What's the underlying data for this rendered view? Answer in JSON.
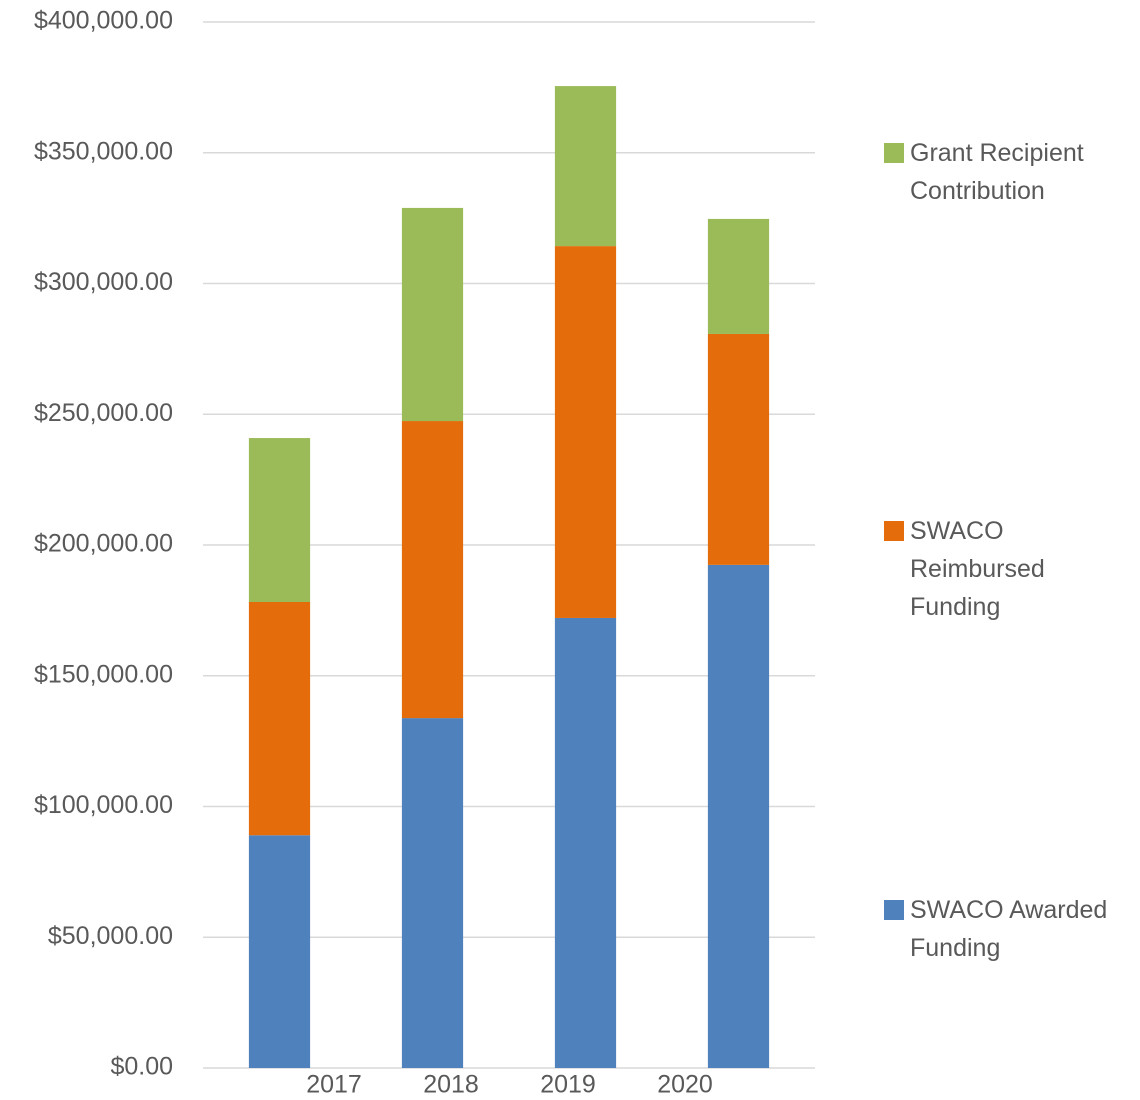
{
  "chart_data": {
    "type": "stacked_bar",
    "categories": [
      "2017",
      "2018",
      "2019",
      "2020"
    ],
    "series": [
      {
        "name": "SWACO Awarded Funding",
        "color": "#4f81bd",
        "values": [
          89000,
          133800,
          172100,
          192400
        ]
      },
      {
        "name": "SWACO Reimbursed Funding",
        "color": "#e46c0a",
        "values": [
          89200,
          113600,
          142200,
          88300
        ]
      },
      {
        "name": "Grant Recipient Contribution",
        "color": "#9bbb59",
        "values": [
          62700,
          81500,
          61200,
          44000
        ]
      }
    ],
    "ylim": [
      0,
      400000
    ],
    "yticks": [
      {
        "value": 0,
        "label": "$0.00"
      },
      {
        "value": 50000,
        "label": "$50,000.00"
      },
      {
        "value": 100000,
        "label": "$100,000.00"
      },
      {
        "value": 150000,
        "label": "$150,000.00"
      },
      {
        "value": 200000,
        "label": "$200,000.00"
      },
      {
        "value": 250000,
        "label": "$250,000.00"
      },
      {
        "value": 300000,
        "label": "$300,000.00"
      },
      {
        "value": 350000,
        "label": "$350,000.00"
      },
      {
        "value": 400000,
        "label": "$400,000.00"
      }
    ],
    "grid": true,
    "legend": "right"
  }
}
